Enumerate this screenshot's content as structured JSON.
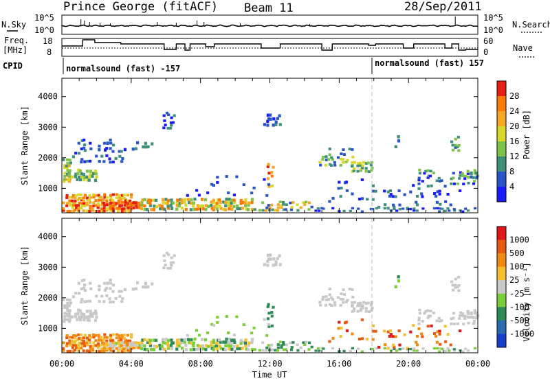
{
  "header": {
    "title": "Prince George (fitACF)",
    "beam": "Beam 11",
    "date": "28/Sep/2011"
  },
  "panels": {
    "nsky_label": "N.Sky",
    "nsearch_label": "N.Search",
    "noise_ticks": [
      "10^5",
      "10^0"
    ],
    "freq_label_1": "Freq.",
    "freq_label_2": "[MHz]",
    "freq_ticks": [
      "18",
      "8"
    ],
    "nave_label": "Nave",
    "nave_ticks": [
      "60",
      "0"
    ],
    "cpid_label": "CPID",
    "cpid_segments": [
      "normalsound (fast) -157",
      "normalsound (fast) 157"
    ]
  },
  "chart_data": [
    {
      "type": "heatmap",
      "title": "",
      "xlabel": "Time UT",
      "ylabel": "Slant Range [km]",
      "x_ticks": [
        "00:00",
        "04:00",
        "08:00",
        "12:00",
        "16:00",
        "20:00",
        "00:00"
      ],
      "y_ticks": [
        1000,
        2000,
        3000,
        4000
      ],
      "ylim": [
        200,
        4600
      ],
      "colorbar": {
        "label": "Power [dB]",
        "ticks": [
          "4",
          "8",
          "12",
          "16",
          "20",
          "24",
          "28"
        ],
        "colors": [
          "#1a1aff",
          "#2a55c8",
          "#3f8f7a",
          "#7fc24a",
          "#d8d82a",
          "#f5a623",
          "#ff7a00",
          "#e62010"
        ]
      }
    },
    {
      "type": "heatmap",
      "title": "",
      "xlabel": "Time UT",
      "ylabel": "Slant Range [km]",
      "x_ticks": [
        "00:00",
        "04:00",
        "08:00",
        "12:00",
        "16:00",
        "20:00",
        "00:00"
      ],
      "y_ticks": [
        1000,
        2000,
        3000,
        4000
      ],
      "ylim": [
        200,
        4600
      ],
      "colorbar": {
        "label": "Velocity [m s⁻¹]",
        "ticks": [
          "1000",
          "500",
          "100",
          "25",
          "-25",
          "-100",
          "-500",
          "-1000"
        ],
        "colors": [
          "#1a3fcc",
          "#2a6ab0",
          "#2e8b57",
          "#7ccd3a",
          "#c8c8c8",
          "#f5c030",
          "#f08a10",
          "#e85a10",
          "#e01818"
        ]
      }
    }
  ]
}
